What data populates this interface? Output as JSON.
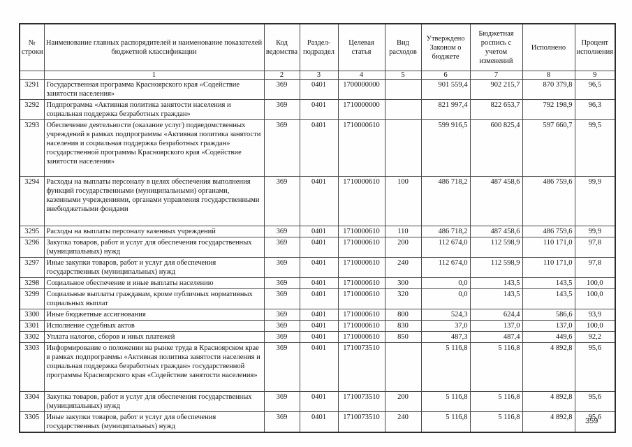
{
  "page": {
    "number": "359"
  },
  "table": {
    "headers": [
      "№ строки",
      "Наименование главных распорядителей и наименование показателей бюджетной классификации",
      "Код ведомства",
      "Раздел-подраздел",
      "Целевая статья",
      "Вид расходов",
      "Утверждено Законом о бюджете",
      "Бюджетная роспись с учетом изменений",
      "Исполнено",
      "Процент исполнения"
    ],
    "column_numbers": [
      "",
      "1",
      "2",
      "3",
      "4",
      "5",
      "6",
      "7",
      "8",
      "9"
    ],
    "rows": [
      {
        "line": "3291",
        "name": "Государственная программа Красноярского края «Содействие занятости населения»",
        "dept_code": "369",
        "section": "0401",
        "target_article": "1700000000",
        "expense_type": "",
        "approved": "901 559,4",
        "revised": "902 215,7",
        "executed": "870 379,8",
        "percent": "96,5"
      },
      {
        "line": "3292",
        "name": "Подпрограмма «Активная политика занятости населения и социальная поддержка безработных граждан»",
        "dept_code": "369",
        "section": "0401",
        "target_article": "1710000000",
        "expense_type": "",
        "approved": "821 997,4",
        "revised": "822 653,7",
        "executed": "792 198,9",
        "percent": "96,3"
      },
      {
        "line": "3293",
        "name": "Обеспечение деятельности (оказание услуг) подведомственных учреждений в рамках подпрограммы «Активная политика занятости населения и социальная  поддержка безработных граждан» государственной программы Красноярского края «Содействие занятости населения»",
        "dept_code": "369",
        "section": "0401",
        "target_article": "1710000610",
        "expense_type": "",
        "approved": "599 916,5",
        "revised": "600 825,4",
        "executed": "597 660,7",
        "percent": "99,5"
      },
      {
        "line": "3294",
        "name": "Расходы на выплаты персоналу в целях обеспечения выполнения функций государственными (муниципальными) органами, казенными учреждениями, органами управления государственными внебюджетными фондами",
        "dept_code": "369",
        "section": "0401",
        "target_article": "1710000610",
        "expense_type": "100",
        "approved": "486 718,2",
        "revised": "487 458,6",
        "executed": "486 759,6",
        "percent": "99,9"
      },
      {
        "line": "3295",
        "name": "Расходы на выплаты персоналу казенных учреждений",
        "dept_code": "369",
        "section": "0401",
        "target_article": "1710000610",
        "expense_type": "110",
        "approved": "486 718,2",
        "revised": "487 458,6",
        "executed": "486 759,6",
        "percent": "99,9"
      },
      {
        "line": "3296",
        "name": "Закупка товаров, работ и услуг для обеспечения государственных (муниципальных) нужд",
        "dept_code": "369",
        "section": "0401",
        "target_article": "1710000610",
        "expense_type": "200",
        "approved": "112 674,0",
        "revised": "112 598,9",
        "executed": "110 171,0",
        "percent": "97,8"
      },
      {
        "line": "3297",
        "name": "Иные закупки товаров, работ и услуг для обеспечения государственных (муниципальных) нужд",
        "dept_code": "369",
        "section": "0401",
        "target_article": "1710000610",
        "expense_type": "240",
        "approved": "112 674,0",
        "revised": "112 598,9",
        "executed": "110 171,0",
        "percent": "97,8"
      },
      {
        "line": "3298",
        "name": "Социальное обеспечение и иные выплаты населению",
        "dept_code": "369",
        "section": "0401",
        "target_article": "1710000610",
        "expense_type": "300",
        "approved": "0,0",
        "revised": "143,5",
        "executed": "143,5",
        "percent": "100,0"
      },
      {
        "line": "3299",
        "name": "Социальные выплаты гражданам, кроме публичных нормативных социальных выплат",
        "dept_code": "369",
        "section": "0401",
        "target_article": "1710000610",
        "expense_type": "320",
        "approved": "0,0",
        "revised": "143,5",
        "executed": "143,5",
        "percent": "100,0"
      },
      {
        "line": "3300",
        "name": "Иные бюджетные ассигнования",
        "dept_code": "369",
        "section": "0401",
        "target_article": "1710000610",
        "expense_type": "800",
        "approved": "524,3",
        "revised": "624,4",
        "executed": "586,6",
        "percent": "93,9"
      },
      {
        "line": "3301",
        "name": "Исполнение судебных актов",
        "dept_code": "369",
        "section": "0401",
        "target_article": "1710000610",
        "expense_type": "830",
        "approved": "37,0",
        "revised": "137,0",
        "executed": "137,0",
        "percent": "100,0"
      },
      {
        "line": "3302",
        "name": "Уплата налогов, сборов и иных платежей",
        "dept_code": "369",
        "section": "0401",
        "target_article": "1710000610",
        "expense_type": "850",
        "approved": "487,3",
        "revised": "487,4",
        "executed": "449,6",
        "percent": "92,2"
      },
      {
        "line": "3303",
        "name": "Информирование о положении на рынке труда в Красноярском крае в рамках подпрограммы «Активная политика занятости населения и социальная поддержка безработных граждан» государственной программы Красноярского края «Содействие занятости населения»",
        "dept_code": "369",
        "section": "0401",
        "target_article": "1710073510",
        "expense_type": "",
        "approved": "5 116,8",
        "revised": "5 116,8",
        "executed": "4 892,8",
        "percent": "95,6"
      },
      {
        "line": "3304",
        "name": "Закупка товаров, работ и услуг для  обеспечения государственных (муниципальных) нужд",
        "dept_code": "369",
        "section": "0401",
        "target_article": "1710073510",
        "expense_type": "200",
        "approved": "5 116,8",
        "revised": "5 116,8",
        "executed": "4 892,8",
        "percent": "95,6"
      },
      {
        "line": "3305",
        "name": "Иные закупки товаров, работ и услуг для обеспечения государственных (муниципальных) нужд",
        "dept_code": "369",
        "section": "0401",
        "target_article": "1710073510",
        "expense_type": "240",
        "approved": "5 116,8",
        "revised": "5 116,8",
        "executed": "4 892,8",
        "percent": "95,6"
      }
    ]
  }
}
